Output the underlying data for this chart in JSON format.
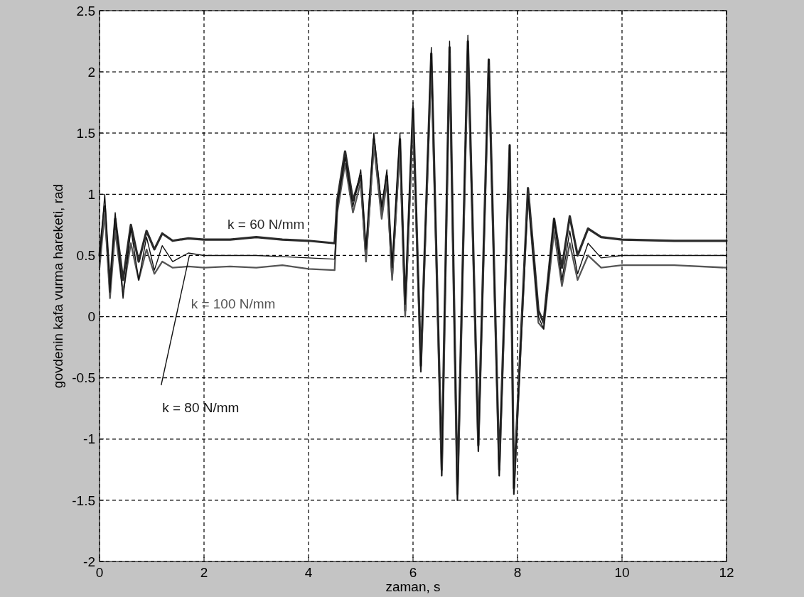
{
  "chart_data": {
    "type": "line",
    "xlabel": "zaman, s",
    "ylabel": "govdenin kafa vurma hareketi, rad",
    "xlim": [
      0,
      12
    ],
    "ylim": [
      -2,
      2.5
    ],
    "xticks": [
      0,
      2,
      4,
      6,
      8,
      10,
      12
    ],
    "yticks": [
      -2,
      -1.5,
      -1,
      -0.5,
      0,
      0.5,
      1,
      1.5,
      2,
      2.5
    ],
    "grid": true,
    "line_style": "solid",
    "series": [
      {
        "name": "k = 60 N/mm",
        "color": "#2a2a2a",
        "x": [
          0,
          0.1,
          0.2,
          0.3,
          0.45,
          0.6,
          0.75,
          0.9,
          1.05,
          1.2,
          1.4,
          1.7,
          2,
          2.5,
          3,
          3.5,
          4,
          4.5,
          4.55,
          4.7,
          4.85,
          5,
          5.1,
          5.25,
          5.4,
          5.5,
          5.6,
          5.75,
          5.85,
          6,
          6.15,
          6.35,
          6.55,
          6.7,
          6.85,
          7.05,
          7.25,
          7.45,
          7.65,
          7.85,
          7.93,
          8.2,
          8.4,
          8.5,
          8.7,
          8.85,
          9,
          9.15,
          9.35,
          9.6,
          10,
          11,
          12
        ],
        "values": [
          0.5,
          0.9,
          0.25,
          0.8,
          0.3,
          0.75,
          0.45,
          0.7,
          0.55,
          0.68,
          0.62,
          0.64,
          0.63,
          0.63,
          0.65,
          0.63,
          0.62,
          0.6,
          0.95,
          1.35,
          0.95,
          1.15,
          0.5,
          1.45,
          0.85,
          1.15,
          0.35,
          1.45,
          0.05,
          1.7,
          -0.4,
          2.15,
          -1.25,
          2.2,
          -1.45,
          2.25,
          -1.05,
          2.1,
          -1.25,
          1.4,
          -1.4,
          1.05,
          0.05,
          -0.05,
          0.8,
          0.4,
          0.82,
          0.5,
          0.72,
          0.65,
          0.63,
          0.62,
          0.62
        ]
      },
      {
        "name": "k = 100 N/mm",
        "color": "#555555",
        "x": [
          0,
          0.1,
          0.2,
          0.3,
          0.45,
          0.6,
          0.75,
          0.9,
          1.05,
          1.2,
          1.4,
          1.7,
          2,
          2.5,
          3,
          3.5,
          4,
          4.5,
          4.55,
          4.7,
          4.85,
          5,
          5.1,
          5.25,
          5.4,
          5.5,
          5.6,
          5.75,
          5.85,
          6,
          6.15,
          6.35,
          6.55,
          6.7,
          6.85,
          7.05,
          7.25,
          7.45,
          7.65,
          7.85,
          7.93,
          8.2,
          8.4,
          8.5,
          8.7,
          8.85,
          9,
          9.15,
          9.35,
          9.6,
          10,
          11,
          12
        ],
        "values": [
          0.4,
          0.85,
          0.15,
          0.7,
          0.2,
          0.6,
          0.3,
          0.55,
          0.35,
          0.45,
          0.4,
          0.41,
          0.4,
          0.41,
          0.4,
          0.42,
          0.39,
          0.38,
          0.85,
          1.25,
          0.85,
          1.1,
          0.45,
          1.4,
          0.8,
          1.1,
          0.3,
          1.4,
          0.0,
          1.65,
          -0.45,
          2.1,
          -1.3,
          2.15,
          -1.5,
          2.2,
          -1.1,
          2.05,
          -1.3,
          1.35,
          -1.45,
          1.0,
          -0.05,
          -0.1,
          0.7,
          0.25,
          0.6,
          0.3,
          0.5,
          0.4,
          0.42,
          0.42,
          0.4
        ]
      },
      {
        "name": "k = 80 N/mm",
        "color": "#111111",
        "x": [
          0,
          0.1,
          0.2,
          0.3,
          0.45,
          0.6,
          0.75,
          0.9,
          1.05,
          1.2,
          1.4,
          1.7,
          2,
          2.5,
          3,
          3.5,
          4,
          4.5,
          4.55,
          4.7,
          4.85,
          5,
          5.1,
          5.25,
          5.4,
          5.5,
          5.6,
          5.75,
          5.85,
          6,
          6.15,
          6.35,
          6.55,
          6.7,
          6.85,
          7.05,
          7.25,
          7.45,
          7.65,
          7.85,
          7.93,
          8.2,
          8.4,
          8.5,
          8.7,
          8.85,
          9,
          9.15,
          9.35,
          9.6,
          10,
          11,
          12
        ],
        "values": [
          0.45,
          1.0,
          0.2,
          0.85,
          0.15,
          0.72,
          0.3,
          0.65,
          0.38,
          0.58,
          0.45,
          0.52,
          0.5,
          0.5,
          0.5,
          0.49,
          0.48,
          0.47,
          0.9,
          1.3,
          0.9,
          1.2,
          0.55,
          1.5,
          0.9,
          1.2,
          0.4,
          1.5,
          0.1,
          1.75,
          -0.45,
          2.2,
          -1.3,
          2.25,
          -1.5,
          2.3,
          -1.1,
          2.1,
          -1.3,
          1.4,
          -1.45,
          1.0,
          0.0,
          -0.1,
          0.8,
          0.3,
          0.7,
          0.35,
          0.6,
          0.48,
          0.5,
          0.5,
          0.5
        ]
      }
    ]
  }
}
